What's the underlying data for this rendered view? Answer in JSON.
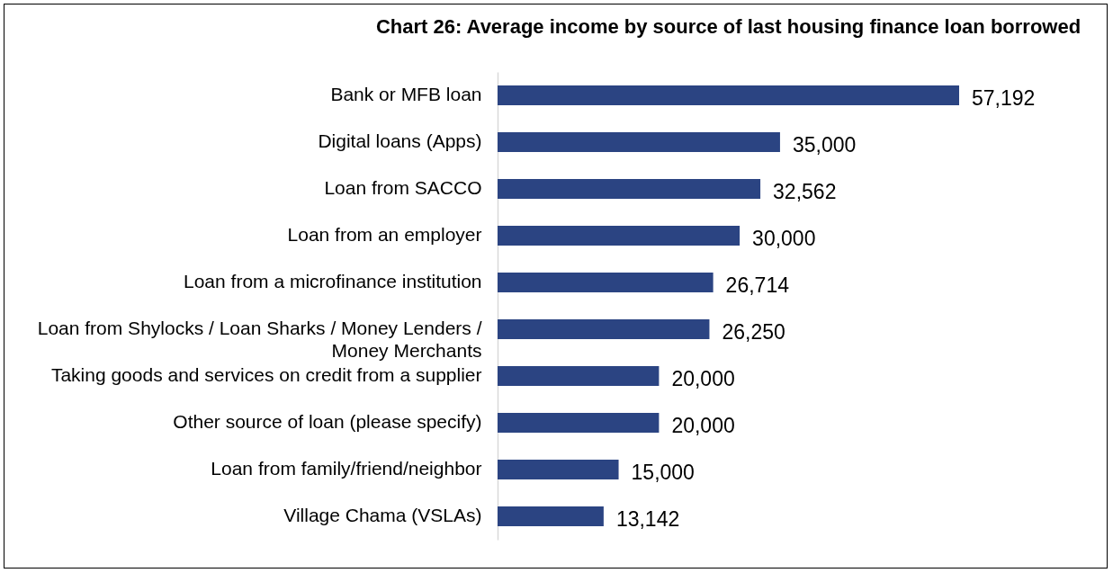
{
  "chart_data": {
    "type": "bar",
    "orientation": "horizontal",
    "title": "Chart 26: Average income by source of last housing finance loan borrowed",
    "categories": [
      "Bank or MFB loan",
      "Digital loans (Apps)",
      "Loan from SACCO",
      "Loan from an employer",
      "Loan from a microfinance institution",
      "Loan from Shylocks / Loan Sharks / Money Lenders / Money Merchants",
      "Taking goods and services on credit from a supplier",
      "Other source of loan (please specify)",
      "Loan from family/friend/neighbor",
      "Village Chama (VSLAs)"
    ],
    "values": [
      57192,
      35000,
      32562,
      30000,
      26714,
      26250,
      20000,
      20000,
      15000,
      13142
    ],
    "value_labels": [
      "57,192",
      "35,000",
      "32,562",
      "30,000",
      "26,714",
      "26,250",
      "20,000",
      "20,000",
      "15,000",
      "13,142"
    ],
    "color": "#2b4482"
  }
}
